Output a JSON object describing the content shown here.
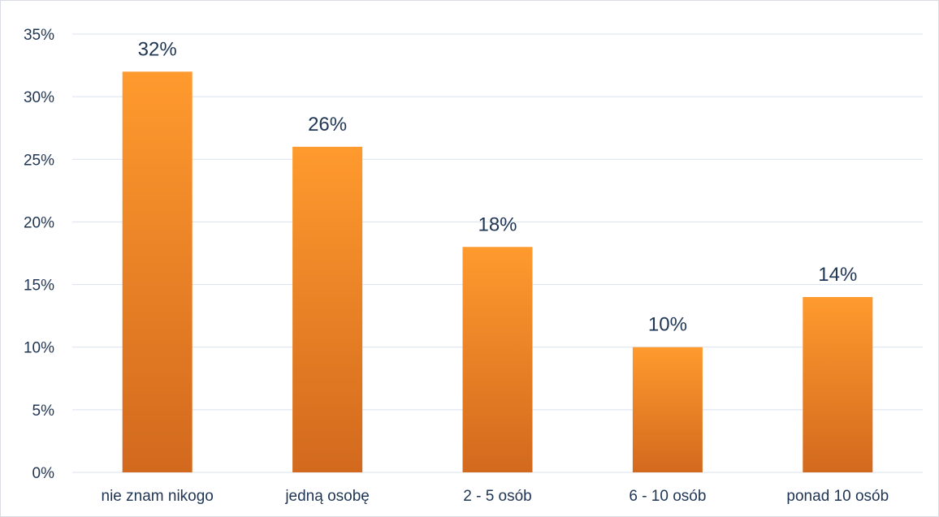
{
  "chart_data": {
    "type": "bar",
    "title": "",
    "xlabel": "",
    "ylabel": "",
    "categories": [
      "nie znam nikogo",
      "jedną osobę",
      "2 - 5 osób",
      "6 - 10 osób",
      "ponad 10 osób"
    ],
    "values": [
      32,
      26,
      18,
      10,
      14
    ],
    "data_labels": [
      "32%",
      "26%",
      "18%",
      "10%",
      "14%"
    ],
    "ylim": [
      0,
      35
    ],
    "yticks": [
      0,
      5,
      10,
      15,
      20,
      25,
      30,
      35
    ],
    "ytick_labels": [
      "0%",
      "5%",
      "10%",
      "15%",
      "20%",
      "25%",
      "30%",
      "35%"
    ],
    "grid": true,
    "legend": "none",
    "colors": {
      "bar_top": "#ff9a2e",
      "bar_bottom": "#d2691e",
      "text": "#1f3554",
      "grid": "#d9e2ef"
    }
  }
}
